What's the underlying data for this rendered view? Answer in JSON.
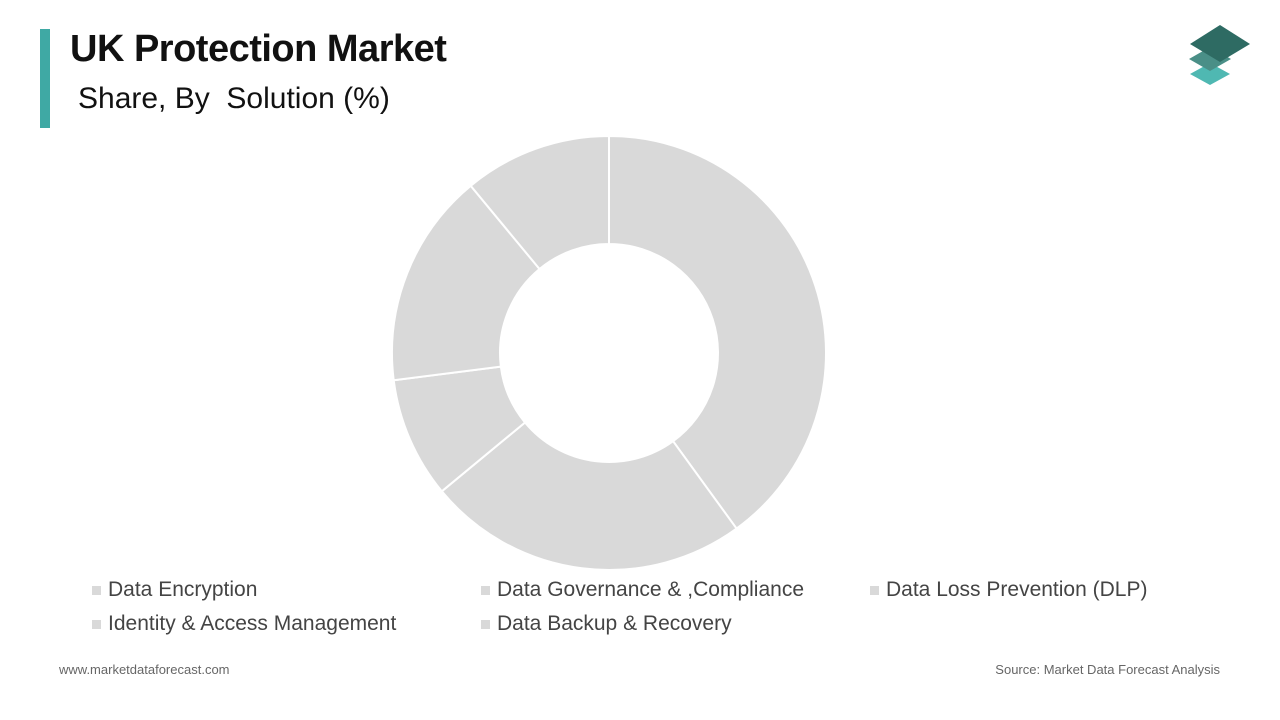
{
  "header": {
    "title": "UK Protection Market",
    "subtitle": "Share, By  Solution (%)"
  },
  "colors": {
    "accent": "#3fa9a4",
    "slice_fill": "#d9d9d9",
    "slice_border": "#ffffff",
    "legend_swatch": "#d9d9d9",
    "logo_top": "#2e6b63",
    "logo_mid": "#4a8f87",
    "logo_bottom": "#4fb8b2"
  },
  "logo": {
    "icon": "stacked-layers-icon"
  },
  "chart_data": {
    "type": "pie",
    "style": "donut",
    "title": "",
    "series": [
      {
        "labels": [
          "Data Encryption",
          "Data Governance & ,Compliance",
          "Data Loss Prevention (DLP)",
          "Identity & Access Management",
          "Data Backup & Recovery"
        ],
        "values": [
          40,
          24,
          9,
          16,
          11
        ]
      }
    ],
    "legend_position": "bottom"
  },
  "legend": {
    "items": [
      "Data Encryption",
      "Data Governance & ,Compliance",
      "Data Loss Prevention (DLP)",
      "Identity & Access Management",
      "Data Backup & Recovery"
    ]
  },
  "footer": {
    "website": "www.marketdataforecast.com",
    "source": "Source: Market Data Forecast Analysis"
  }
}
